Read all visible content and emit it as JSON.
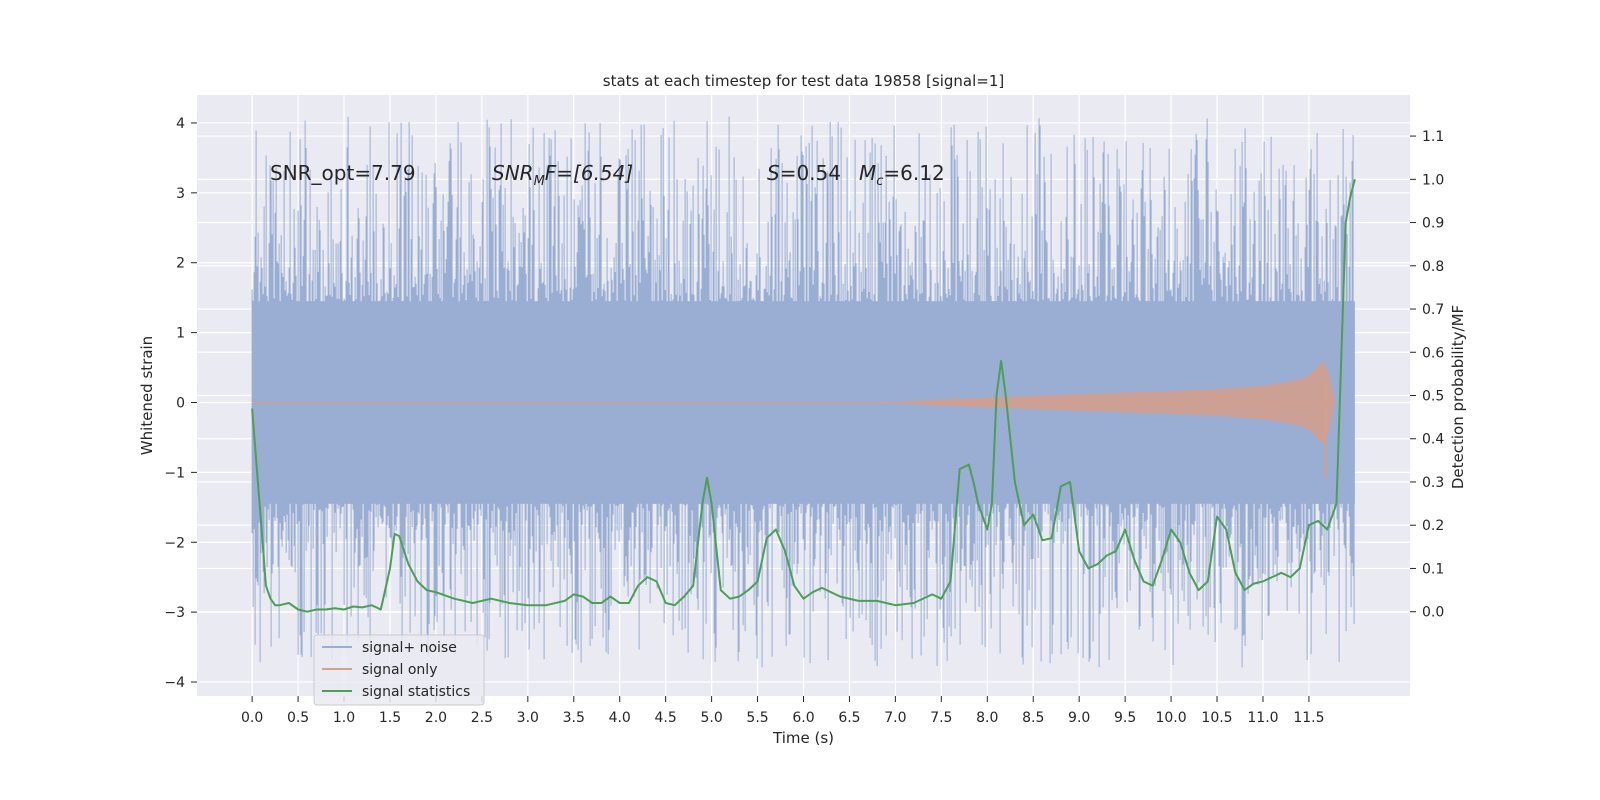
{
  "chart_data": {
    "type": "line",
    "title": "stats at each timestep for test data 19858 [signal=1]",
    "xlabel": "Time (s)",
    "ylabel": "Whitened strain",
    "y2label": "Detection probability/MF",
    "xlim": [
      -0.6,
      12.6
    ],
    "ylim": [
      -4.2,
      4.4
    ],
    "y2lim": [
      -0.195,
      1.195
    ],
    "x_ticks": [
      0.0,
      0.5,
      1.0,
      1.5,
      2.0,
      2.5,
      3.0,
      3.5,
      4.0,
      4.5,
      5.0,
      5.5,
      6.0,
      6.5,
      7.0,
      7.5,
      8.0,
      8.5,
      9.0,
      9.5,
      10.0,
      10.5,
      11.0,
      11.5
    ],
    "x_tick_labels": [
      "0.0",
      "0.5",
      "1.0",
      "1.5",
      "2.0",
      "2.5",
      "3.0",
      "3.5",
      "4.0",
      "4.5",
      "5.0",
      "5.5",
      "6.0",
      "6.5",
      "7.0",
      "7.5",
      "8.0",
      "8.5",
      "9.0",
      "9.5",
      "10.0",
      "10.5",
      "11.0",
      "11.5"
    ],
    "y_ticks": [
      4,
      3,
      2,
      1,
      0,
      -1,
      -2,
      -3,
      -4
    ],
    "y_tick_labels": [
      "4",
      "3",
      "2",
      "1",
      "0",
      "−1",
      "−2",
      "−3",
      "−4"
    ],
    "y2_ticks": [
      1.1,
      1.0,
      0.9,
      0.8,
      0.7,
      0.6,
      0.5,
      0.4,
      0.3,
      0.2,
      0.1,
      0.0
    ],
    "y2_tick_labels": [
      "1.1",
      "1.0",
      "0.9",
      "0.8",
      "0.7",
      "0.6",
      "0.5",
      "0.4",
      "0.3",
      "0.2",
      "0.1",
      "0.0"
    ],
    "grid": true,
    "legend_position": "lower-left",
    "annotations": {
      "snr_opt": "SNR_opt=7.79",
      "snr_mf_main": "SNR",
      "snr_mf_sub": "M",
      "snr_mf_rest": "F=[6.54]",
      "s_main": "S",
      "s_rest": "=0.54",
      "mc_main": "M",
      "mc_sub": "c",
      "mc_rest": "=6.12"
    },
    "series": [
      {
        "name": "signal+ noise",
        "color": "#9aaed3",
        "axis": "left",
        "time_range": [
          0.0,
          12.0
        ],
        "core_envelope": [
          -1.45,
          1.45
        ],
        "approx_extremes": [
          -3.8,
          4.1
        ]
      },
      {
        "name": "signal only",
        "color": "#d39f8f",
        "axis": "left",
        "x": [
          0.0,
          6.0,
          7.0,
          8.0,
          9.0,
          10.0,
          10.5,
          11.0,
          11.3,
          11.5,
          11.65,
          11.72,
          11.78
        ],
        "envelope": [
          0.0,
          0.0,
          0.01,
          0.07,
          0.12,
          0.16,
          0.19,
          0.24,
          0.3,
          0.38,
          0.6,
          0.4,
          0.0
        ],
        "min_point": [
          11.68,
          -1.07
        ]
      },
      {
        "name": "signal statistics",
        "color": "#4d9e57",
        "axis": "right",
        "x": [
          0.0,
          0.1,
          0.15,
          0.2,
          0.25,
          0.3,
          0.4,
          0.5,
          0.6,
          0.7,
          0.8,
          0.9,
          1.0,
          1.1,
          1.2,
          1.3,
          1.4,
          1.5,
          1.55,
          1.6,
          1.7,
          1.8,
          1.9,
          2.0,
          2.2,
          2.4,
          2.6,
          2.8,
          3.0,
          3.2,
          3.4,
          3.5,
          3.6,
          3.7,
          3.8,
          3.9,
          4.0,
          4.1,
          4.2,
          4.3,
          4.4,
          4.5,
          4.6,
          4.7,
          4.8,
          4.9,
          4.95,
          5.0,
          5.1,
          5.2,
          5.3,
          5.4,
          5.5,
          5.6,
          5.7,
          5.8,
          5.9,
          6.0,
          6.1,
          6.2,
          6.4,
          6.6,
          6.8,
          7.0,
          7.2,
          7.4,
          7.5,
          7.6,
          7.7,
          7.8,
          7.85,
          7.9,
          8.0,
          8.05,
          8.1,
          8.15,
          8.2,
          8.3,
          8.4,
          8.5,
          8.6,
          8.7,
          8.8,
          8.9,
          9.0,
          9.1,
          9.2,
          9.3,
          9.4,
          9.5,
          9.6,
          9.7,
          9.8,
          9.9,
          10.0,
          10.1,
          10.2,
          10.3,
          10.4,
          10.5,
          10.6,
          10.7,
          10.8,
          10.9,
          11.0,
          11.1,
          11.2,
          11.3,
          11.4,
          11.5,
          11.6,
          11.7,
          11.8,
          11.9,
          11.95,
          12.0
        ],
        "values": [
          0.47,
          0.2,
          0.06,
          0.03,
          0.015,
          0.015,
          0.02,
          0.005,
          0.0,
          0.005,
          0.005,
          0.008,
          0.005,
          0.012,
          0.01,
          0.015,
          0.005,
          0.1,
          0.18,
          0.175,
          0.11,
          0.07,
          0.05,
          0.045,
          0.03,
          0.02,
          0.03,
          0.02,
          0.015,
          0.015,
          0.025,
          0.04,
          0.035,
          0.02,
          0.02,
          0.035,
          0.02,
          0.02,
          0.06,
          0.08,
          0.07,
          0.02,
          0.015,
          0.035,
          0.06,
          0.25,
          0.31,
          0.25,
          0.05,
          0.03,
          0.035,
          0.05,
          0.07,
          0.17,
          0.19,
          0.14,
          0.06,
          0.03,
          0.045,
          0.055,
          0.035,
          0.025,
          0.025,
          0.015,
          0.02,
          0.04,
          0.03,
          0.07,
          0.33,
          0.34,
          0.3,
          0.25,
          0.19,
          0.25,
          0.5,
          0.58,
          0.5,
          0.3,
          0.2,
          0.225,
          0.165,
          0.17,
          0.29,
          0.3,
          0.14,
          0.1,
          0.11,
          0.13,
          0.14,
          0.19,
          0.12,
          0.07,
          0.06,
          0.12,
          0.19,
          0.16,
          0.09,
          0.05,
          0.07,
          0.22,
          0.19,
          0.09,
          0.05,
          0.065,
          0.07,
          0.08,
          0.09,
          0.08,
          0.1,
          0.2,
          0.21,
          0.19,
          0.25,
          0.9,
          0.96,
          1.0
        ]
      }
    ]
  }
}
